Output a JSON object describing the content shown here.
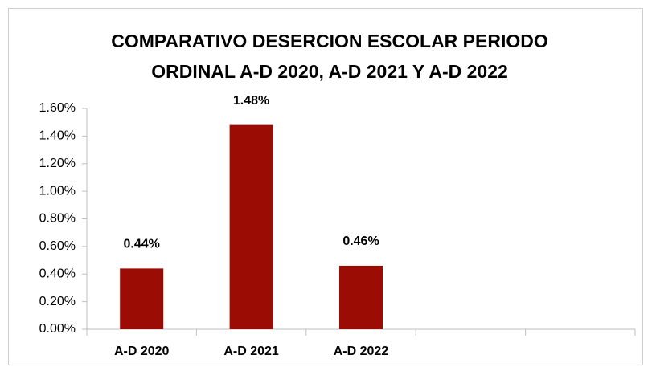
{
  "chart_data": {
    "type": "bar",
    "title": "COMPARATIVO DESERCION ESCOLAR PERIODO ORDINAL A-D 2020, A-D 2021 Y A-D 2022",
    "categories": [
      "A-D 2020",
      "A-D 2021",
      "A-D 2022",
      null,
      null
    ],
    "values": [
      0.44,
      1.48,
      0.46,
      null,
      null
    ],
    "value_labels": [
      "0.44%",
      "1.48%",
      "0.46%",
      null,
      null
    ],
    "color": "#9a0c04",
    "ylim": [
      0,
      1.6
    ],
    "yticks": [
      {
        "value": 0,
        "label": "0.00%"
      },
      {
        "value": 0.2,
        "label": "0.20%"
      },
      {
        "value": 0.4,
        "label": "0.40%"
      },
      {
        "value": 0.6,
        "label": "0.60%"
      },
      {
        "value": 0.8,
        "label": "0.80%"
      },
      {
        "value": 1.0,
        "label": "1.00%"
      },
      {
        "value": 1.2,
        "label": "1.20%"
      },
      {
        "value": 1.4,
        "label": "1.40%"
      },
      {
        "value": 1.6,
        "label": "1.60%"
      }
    ],
    "grid": false
  }
}
